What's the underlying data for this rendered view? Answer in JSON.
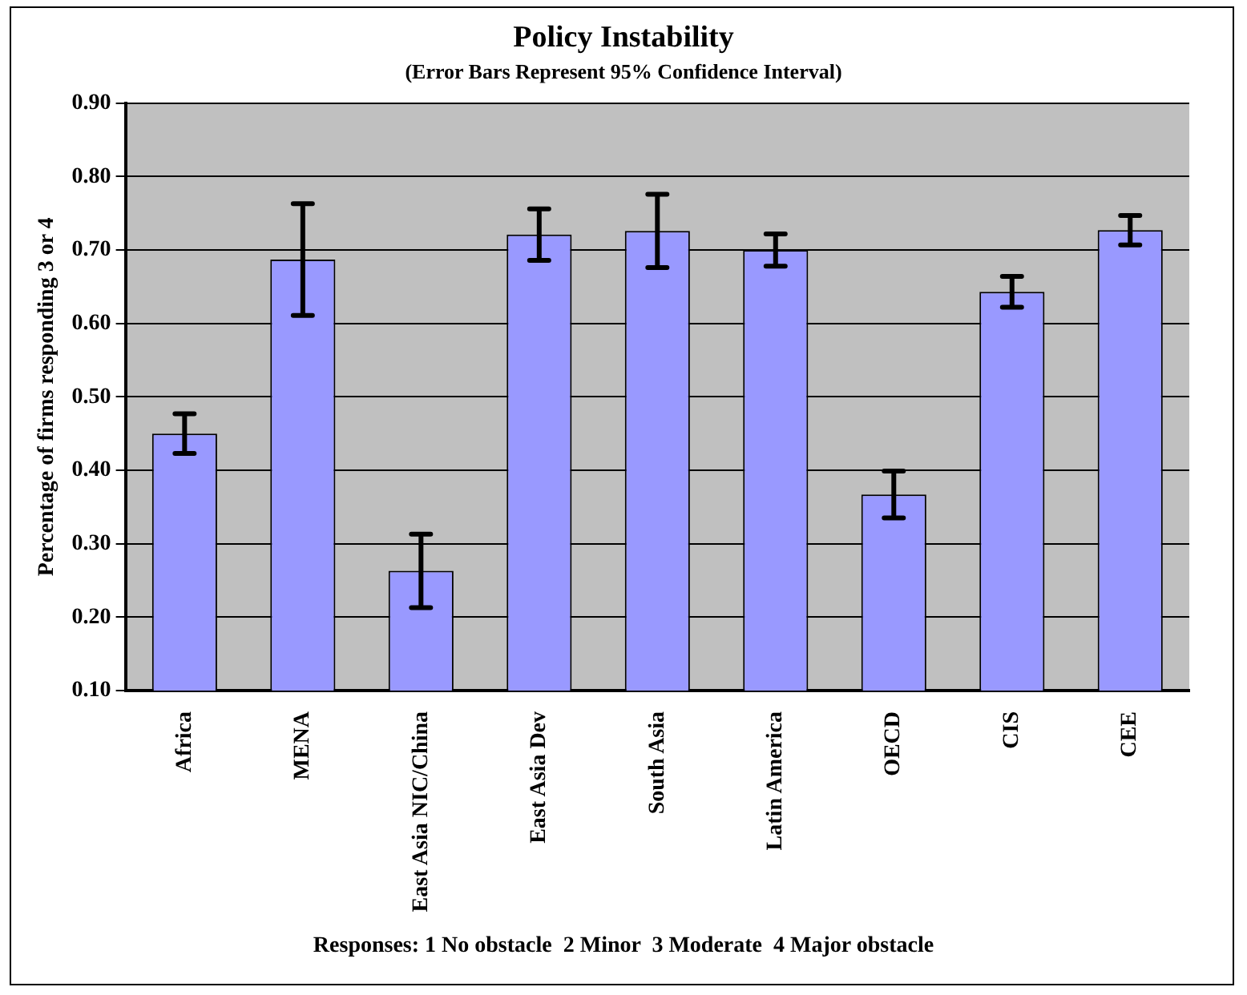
{
  "chart_data": {
    "type": "bar",
    "title": "Policy Instability",
    "subtitle": "(Error Bars Represent 95% Confidence  Interval)",
    "ylabel": "Percentage of firms responding 3 or 4",
    "categories": [
      "Africa",
      "MENA",
      "East Asia NIC/China",
      "East Asia Dev",
      "South Asia",
      "Latin America",
      "OECD",
      "CIS",
      "CEE"
    ],
    "values": [
      0.45,
      0.687,
      0.263,
      0.721,
      0.726,
      0.7,
      0.367,
      0.643,
      0.727
    ],
    "errors": [
      0.027,
      0.076,
      0.05,
      0.035,
      0.05,
      0.022,
      0.032,
      0.021,
      0.02
    ],
    "color": "#9999ff",
    "ylim": [
      0.1,
      0.9
    ],
    "yticks": [
      {
        "value": 0.1,
        "label": "0.10"
      },
      {
        "value": 0.2,
        "label": "0.20"
      },
      {
        "value": 0.3,
        "label": "0.30"
      },
      {
        "value": 0.4,
        "label": "0.40"
      },
      {
        "value": 0.5,
        "label": "0.50"
      },
      {
        "value": 0.6,
        "label": "0.60"
      },
      {
        "value": 0.7,
        "label": "0.70"
      },
      {
        "value": 0.8,
        "label": "0.80"
      },
      {
        "value": 0.9,
        "label": "0.90"
      }
    ],
    "grid": "y",
    "legend": false,
    "annotations": [
      "Responses: 1 No obstacle  2 Minor  3 Moderate  4 Major obstacle"
    ]
  }
}
